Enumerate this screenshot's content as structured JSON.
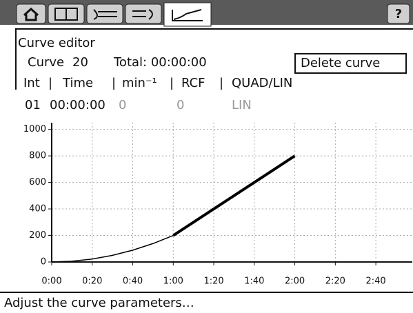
{
  "help_button": "?",
  "editor": {
    "title": "Curve editor",
    "curve_label": "Curve",
    "curve_number": "20",
    "total": "Total: 00:00:00",
    "delete_button": "Delete curve"
  },
  "table": {
    "headers": [
      "Int",
      "Time",
      "min⁻¹",
      "RCF",
      "QUAD/LIN"
    ],
    "rows": [
      [
        "01",
        "00:00:00",
        "0",
        "0",
        "LIN"
      ]
    ]
  },
  "chart_data": {
    "type": "line",
    "x": [
      0,
      10,
      20,
      30,
      40,
      50,
      60,
      120
    ],
    "series": [
      {
        "color": "#000000",
        "line_width": 1.5,
        "values": [
          0,
          6,
          22,
          50,
          89,
          139,
          200,
          null
        ]
      },
      {
        "color": "#000000",
        "line_width": 4,
        "values": [
          null,
          null,
          null,
          null,
          null,
          null,
          200,
          800
        ]
      }
    ],
    "xlim": [
      0,
      178
    ],
    "ylim": [
      0,
      1050
    ],
    "xticks": [
      {
        "value": 0,
        "label": "0:00"
      },
      {
        "value": 20,
        "label": "0:20"
      },
      {
        "value": 40,
        "label": "0:40"
      },
      {
        "value": 60,
        "label": "1:00"
      },
      {
        "value": 80,
        "label": "1:20"
      },
      {
        "value": 100,
        "label": "1:40"
      },
      {
        "value": 120,
        "label": "2:00"
      },
      {
        "value": 140,
        "label": "2:20"
      },
      {
        "value": 160,
        "label": "2:40"
      }
    ],
    "yticks": [
      0,
      200,
      400,
      600,
      800,
      1000
    ],
    "grid": true
  },
  "status": "Adjust the curve parameters…"
}
